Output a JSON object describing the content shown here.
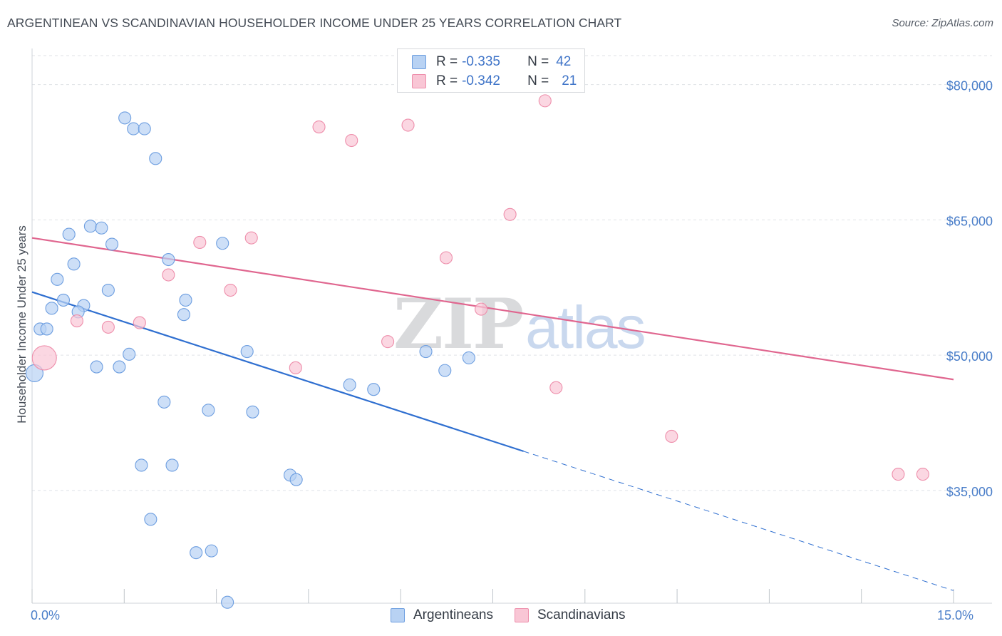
{
  "title": "ARGENTINEAN VS SCANDINAVIAN HOUSEHOLDER INCOME UNDER 25 YEARS CORRELATION CHART",
  "source": "Source: ZipAtlas.com",
  "watermark": {
    "zip": "ZIP",
    "atlas": "atlas"
  },
  "legend": {
    "rows": [
      {
        "r_label": "R =",
        "r_value": "-0.335",
        "n_label": "N =",
        "n_value": "42"
      },
      {
        "r_label": "R =",
        "r_value": "-0.342",
        "n_label": "N =",
        "n_value": "21"
      }
    ]
  },
  "colors": {
    "argentinean_fill": "#b8d2f3",
    "argentinean_stroke": "#6d9ee0",
    "argentinean_line": "#2f6fd0",
    "scandinavian_fill": "#f9c6d5",
    "scandinavian_stroke": "#ee8eab",
    "scandinavian_line": "#e0668f",
    "grid": "#dfe2e6",
    "axis_label": "#4a7ec9"
  },
  "chart_data": {
    "type": "scatter",
    "ylabel": "Householder Income Under 25 years",
    "xlim": [
      0,
      15
    ],
    "ylim": [
      22500,
      84000
    ],
    "x_tick_labels": [
      {
        "value": 0,
        "label": "0.0%"
      },
      {
        "value": 15,
        "label": "15.0%"
      }
    ],
    "x_minor_ticks": [
      0,
      1.5,
      3,
      4.5,
      6,
      7.5,
      9,
      10.5,
      12,
      13.5,
      15
    ],
    "y_ticks": [
      {
        "value": 80000,
        "label": "$80,000"
      },
      {
        "value": 65000,
        "label": "$65,000"
      },
      {
        "value": 50000,
        "label": "$50,000"
      },
      {
        "value": 35000,
        "label": "$35,000"
      }
    ],
    "grid": true,
    "legend_position": "top-center",
    "bottom_legend": [
      "Argentineans",
      "Scandinavians"
    ],
    "series": [
      {
        "name": "Argentineans",
        "r": -0.335,
        "n": 42,
        "points": [
          {
            "x": 1.51,
            "y": 76300
          },
          {
            "x": 1.65,
            "y": 75100
          },
          {
            "x": 1.83,
            "y": 75100
          },
          {
            "x": 2.01,
            "y": 71800
          },
          {
            "x": 0.6,
            "y": 63400
          },
          {
            "x": 0.95,
            "y": 64300
          },
          {
            "x": 1.13,
            "y": 64100
          },
          {
            "x": 1.3,
            "y": 62300
          },
          {
            "x": 3.1,
            "y": 62400
          },
          {
            "x": 0.68,
            "y": 60100
          },
          {
            "x": 2.22,
            "y": 60600
          },
          {
            "x": 0.41,
            "y": 58400
          },
          {
            "x": 1.24,
            "y": 57200
          },
          {
            "x": 0.51,
            "y": 56100
          },
          {
            "x": 2.5,
            "y": 56100
          },
          {
            "x": 0.32,
            "y": 55200
          },
          {
            "x": 0.84,
            "y": 55500
          },
          {
            "x": 0.75,
            "y": 54800
          },
          {
            "x": 2.47,
            "y": 54500
          },
          {
            "x": 0.13,
            "y": 52900
          },
          {
            "x": 0.24,
            "y": 52900
          },
          {
            "x": 1.58,
            "y": 50100
          },
          {
            "x": 3.5,
            "y": 50400
          },
          {
            "x": 6.41,
            "y": 50400
          },
          {
            "x": 7.11,
            "y": 49700
          },
          {
            "x": 1.05,
            "y": 48700
          },
          {
            "x": 1.42,
            "y": 48700
          },
          {
            "x": 6.72,
            "y": 48300
          },
          {
            "x": 0.04,
            "y": 48000
          },
          {
            "x": 5.17,
            "y": 46700
          },
          {
            "x": 5.56,
            "y": 46200
          },
          {
            "x": 2.15,
            "y": 44800
          },
          {
            "x": 2.87,
            "y": 43900
          },
          {
            "x": 3.59,
            "y": 43700
          },
          {
            "x": 1.78,
            "y": 37800
          },
          {
            "x": 2.28,
            "y": 37800
          },
          {
            "x": 4.2,
            "y": 36700
          },
          {
            "x": 4.3,
            "y": 36200
          },
          {
            "x": 1.93,
            "y": 31800
          },
          {
            "x": 2.67,
            "y": 28100
          },
          {
            "x": 2.92,
            "y": 28300
          },
          {
            "x": 3.18,
            "y": 22600
          }
        ],
        "trend": {
          "x0": 0,
          "y0": 57000,
          "x_solid_end": 8.0,
          "x1": 15,
          "y1": 23900
        }
      },
      {
        "name": "Scandinavians",
        "r": -0.342,
        "n": 21,
        "points": [
          {
            "x": 8.35,
            "y": 78200
          },
          {
            "x": 4.67,
            "y": 75300
          },
          {
            "x": 6.12,
            "y": 75500
          },
          {
            "x": 5.2,
            "y": 73800
          },
          {
            "x": 7.78,
            "y": 65600
          },
          {
            "x": 2.73,
            "y": 62500
          },
          {
            "x": 3.57,
            "y": 63000
          },
          {
            "x": 6.74,
            "y": 60800
          },
          {
            "x": 2.22,
            "y": 58900
          },
          {
            "x": 3.23,
            "y": 57200
          },
          {
            "x": 7.31,
            "y": 55100
          },
          {
            "x": 0.73,
            "y": 53800
          },
          {
            "x": 1.24,
            "y": 53100
          },
          {
            "x": 1.75,
            "y": 53600
          },
          {
            "x": 5.79,
            "y": 51500
          },
          {
            "x": 0.2,
            "y": 49700
          },
          {
            "x": 4.29,
            "y": 48600
          },
          {
            "x": 8.53,
            "y": 46400
          },
          {
            "x": 10.41,
            "y": 41000
          },
          {
            "x": 14.1,
            "y": 36800
          },
          {
            "x": 14.5,
            "y": 36800
          }
        ],
        "trend": {
          "x0": 0,
          "y0": 63000,
          "x1": 15,
          "y1": 47300
        }
      }
    ]
  }
}
